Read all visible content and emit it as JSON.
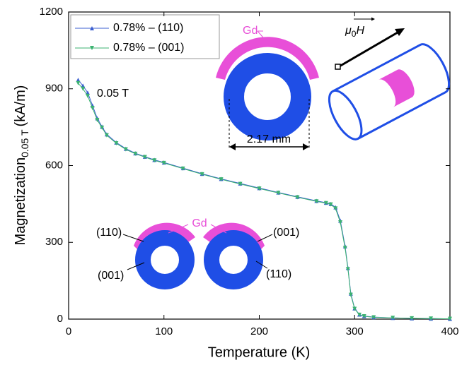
{
  "chart_data": {
    "type": "line",
    "xlabel": "Temperature (K)",
    "ylabel": {
      "main": "Magnetization",
      "sub": "0.05 T",
      "unit": "(kA/m)"
    },
    "xlim": [
      0,
      400
    ],
    "ylim": [
      0,
      1200
    ],
    "xticks": [
      0,
      100,
      200,
      300,
      400
    ],
    "yticks": [
      0,
      300,
      600,
      900,
      1200
    ],
    "legend": "upper left",
    "x": [
      10,
      15,
      20,
      25,
      30,
      35,
      40,
      50,
      60,
      70,
      80,
      90,
      100,
      120,
      140,
      160,
      180,
      200,
      220,
      240,
      260,
      270,
      275,
      280,
      285,
      290,
      293,
      296,
      300,
      305,
      310,
      320,
      340,
      360,
      380,
      400
    ],
    "series": [
      {
        "name": "0.78% – (110)",
        "color": "#3b5fd0",
        "marker": "triangle-up",
        "values": [
          935,
          912,
          885,
          835,
          785,
          752,
          722,
          690,
          666,
          648,
          635,
          622,
          612,
          590,
          568,
          548,
          530,
          512,
          495,
          478,
          462,
          455,
          450,
          437,
          385,
          285,
          200,
          100,
          42,
          18,
          12,
          8,
          5,
          3,
          2,
          1
        ]
      },
      {
        "name": "0.78% – (001)",
        "color": "#3cb371",
        "marker": "triangle-down",
        "values": [
          922,
          900,
          872,
          825,
          778,
          748,
          718,
          687,
          663,
          646,
          633,
          620,
          610,
          588,
          566,
          546,
          528,
          510,
          493,
          476,
          460,
          453,
          448,
          432,
          378,
          278,
          195,
          95,
          40,
          17,
          11,
          7,
          5,
          3,
          2,
          1
        ]
      }
    ],
    "annotations": {
      "field": "0.05 T",
      "gd_top": "Gd",
      "diameter": "2.17 mm",
      "mu0H": {
        "base": "μ",
        "sub": "0",
        "tail": "H"
      },
      "gd_bottom": "Gd",
      "left_top": "(110)",
      "left_bottom": "(001)",
      "right_top": "(001)",
      "right_bottom": "(110)"
    }
  }
}
